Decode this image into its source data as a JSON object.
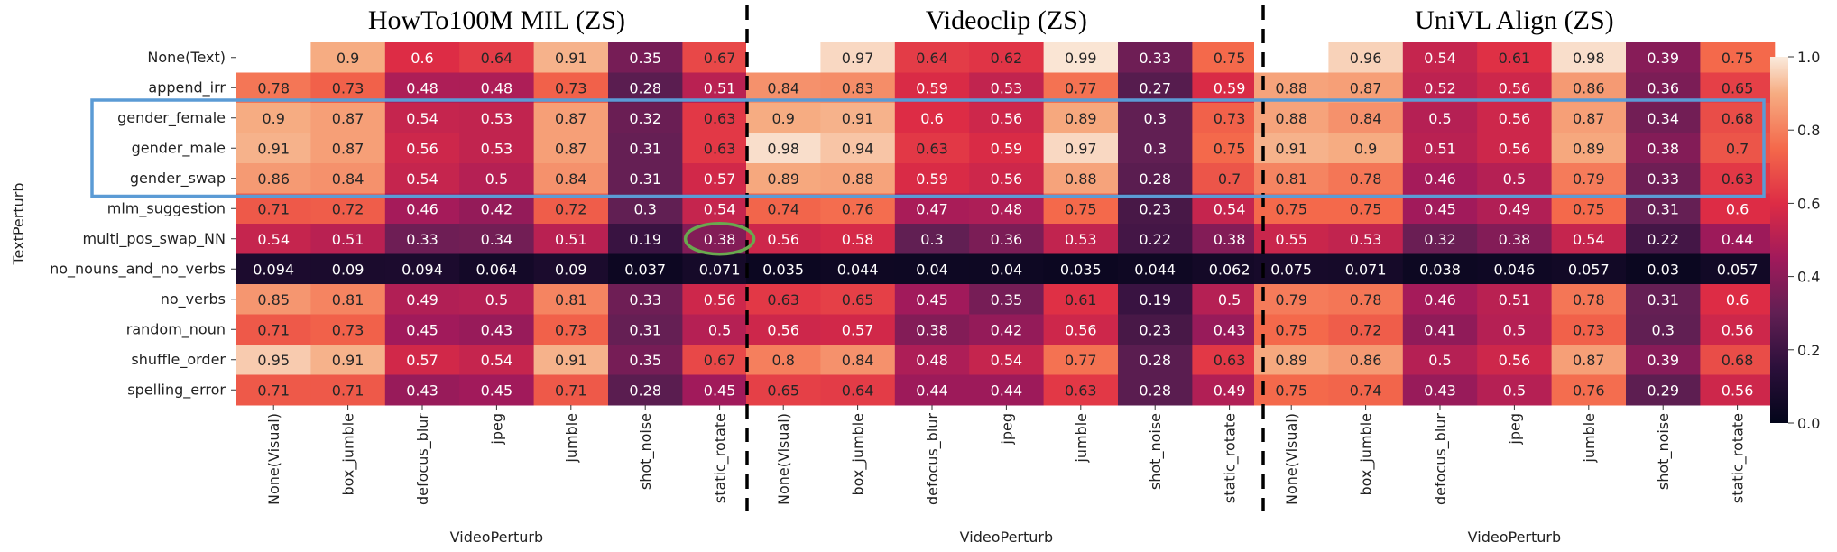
{
  "chart_data": {
    "type": "heatmap",
    "ylabel": "TextPerturb",
    "xlabel": "VideoPerturb",
    "y_categories": [
      "None(Text)",
      "append_irr",
      "gender_female",
      "gender_male",
      "gender_swap",
      "mlm_suggestion",
      "multi_pos_swap_NN",
      "no_nouns_and_no_verbs",
      "no_verbs",
      "random_noun",
      "shuffle_order",
      "spelling_error"
    ],
    "x_categories": [
      "None(Visual)",
      "box_jumble",
      "defocus_blur",
      "jpeg",
      "jumble",
      "shot_noise",
      "static_rotate"
    ],
    "colorbar": {
      "min": 0.0,
      "max": 1.0,
      "ticks": [
        "0.0",
        "0.2",
        "0.4",
        "0.6",
        "0.8",
        "1.0"
      ]
    },
    "highlight_box_rows": [
      "gender_female",
      "gender_male",
      "gender_swap"
    ],
    "highlight_circle": {
      "panel": 0,
      "row": "multi_pos_swap_NN",
      "column": "static_rotate"
    },
    "colors": {
      "box": "#5b9bd5",
      "circle": "#6aa84f"
    },
    "panels": [
      {
        "title": "HowTo100M MIL (ZS)",
        "values": [
          [
            null,
            "0.9",
            "0.6",
            "0.64",
            "0.91",
            "0.35",
            "0.67"
          ],
          [
            "0.78",
            "0.73",
            "0.48",
            "0.48",
            "0.73",
            "0.28",
            "0.51"
          ],
          [
            "0.9",
            "0.87",
            "0.54",
            "0.53",
            "0.87",
            "0.32",
            "0.63"
          ],
          [
            "0.91",
            "0.87",
            "0.56",
            "0.53",
            "0.87",
            "0.31",
            "0.63"
          ],
          [
            "0.86",
            "0.84",
            "0.54",
            "0.5",
            "0.84",
            "0.31",
            "0.57"
          ],
          [
            "0.71",
            "0.72",
            "0.46",
            "0.42",
            "0.72",
            "0.3",
            "0.54"
          ],
          [
            "0.54",
            "0.51",
            "0.33",
            "0.34",
            "0.51",
            "0.19",
            "0.38"
          ],
          [
            "0.094",
            "0.09",
            "0.094",
            "0.064",
            "0.09",
            "0.037",
            "0.071"
          ],
          [
            "0.85",
            "0.81",
            "0.49",
            "0.5",
            "0.81",
            "0.33",
            "0.56"
          ],
          [
            "0.71",
            "0.73",
            "0.45",
            "0.43",
            "0.73",
            "0.31",
            "0.5"
          ],
          [
            "0.95",
            "0.91",
            "0.57",
            "0.54",
            "0.91",
            "0.35",
            "0.67"
          ],
          [
            "0.71",
            "0.71",
            "0.43",
            "0.45",
            "0.71",
            "0.28",
            "0.45"
          ]
        ]
      },
      {
        "title": "Videoclip (ZS)",
        "values": [
          [
            null,
            "0.97",
            "0.64",
            "0.62",
            "0.99",
            "0.33",
            "0.75"
          ],
          [
            "0.84",
            "0.83",
            "0.59",
            "0.53",
            "0.77",
            "0.27",
            "0.59"
          ],
          [
            "0.9",
            "0.91",
            "0.6",
            "0.56",
            "0.89",
            "0.3",
            "0.73"
          ],
          [
            "0.98",
            "0.94",
            "0.63",
            "0.59",
            "0.97",
            "0.3",
            "0.75"
          ],
          [
            "0.89",
            "0.88",
            "0.59",
            "0.56",
            "0.88",
            "0.28",
            "0.7"
          ],
          [
            "0.74",
            "0.76",
            "0.47",
            "0.48",
            "0.75",
            "0.23",
            "0.54"
          ],
          [
            "0.56",
            "0.58",
            "0.3",
            "0.36",
            "0.53",
            "0.22",
            "0.38"
          ],
          [
            "0.035",
            "0.044",
            "0.04",
            "0.04",
            "0.035",
            "0.044",
            "0.062"
          ],
          [
            "0.63",
            "0.65",
            "0.45",
            "0.35",
            "0.61",
            "0.19",
            "0.5"
          ],
          [
            "0.56",
            "0.57",
            "0.38",
            "0.42",
            "0.56",
            "0.23",
            "0.43"
          ],
          [
            "0.8",
            "0.84",
            "0.48",
            "0.54",
            "0.77",
            "0.28",
            "0.63"
          ],
          [
            "0.65",
            "0.64",
            "0.44",
            "0.44",
            "0.63",
            "0.28",
            "0.49"
          ]
        ]
      },
      {
        "title": "UniVL Align (ZS)",
        "values": [
          [
            null,
            "0.96",
            "0.54",
            "0.61",
            "0.98",
            "0.39",
            "0.75"
          ],
          [
            "0.88",
            "0.87",
            "0.52",
            "0.56",
            "0.86",
            "0.36",
            "0.65"
          ],
          [
            "0.88",
            "0.84",
            "0.5",
            "0.56",
            "0.87",
            "0.34",
            "0.68"
          ],
          [
            "0.91",
            "0.9",
            "0.51",
            "0.56",
            "0.89",
            "0.38",
            "0.7"
          ],
          [
            "0.81",
            "0.78",
            "0.46",
            "0.5",
            "0.79",
            "0.33",
            "0.63"
          ],
          [
            "0.75",
            "0.75",
            "0.45",
            "0.49",
            "0.75",
            "0.31",
            "0.6"
          ],
          [
            "0.55",
            "0.53",
            "0.32",
            "0.38",
            "0.54",
            "0.22",
            "0.44"
          ],
          [
            "0.075",
            "0.071",
            "0.038",
            "0.046",
            "0.057",
            "0.03",
            "0.057"
          ],
          [
            "0.79",
            "0.78",
            "0.46",
            "0.51",
            "0.78",
            "0.31",
            "0.6"
          ],
          [
            "0.75",
            "0.72",
            "0.41",
            "0.5",
            "0.73",
            "0.3",
            "0.56"
          ],
          [
            "0.89",
            "0.86",
            "0.5",
            "0.56",
            "0.87",
            "0.39",
            "0.68"
          ],
          [
            "0.75",
            "0.74",
            "0.43",
            "0.5",
            "0.76",
            "0.29",
            "0.56"
          ]
        ]
      }
    ]
  }
}
